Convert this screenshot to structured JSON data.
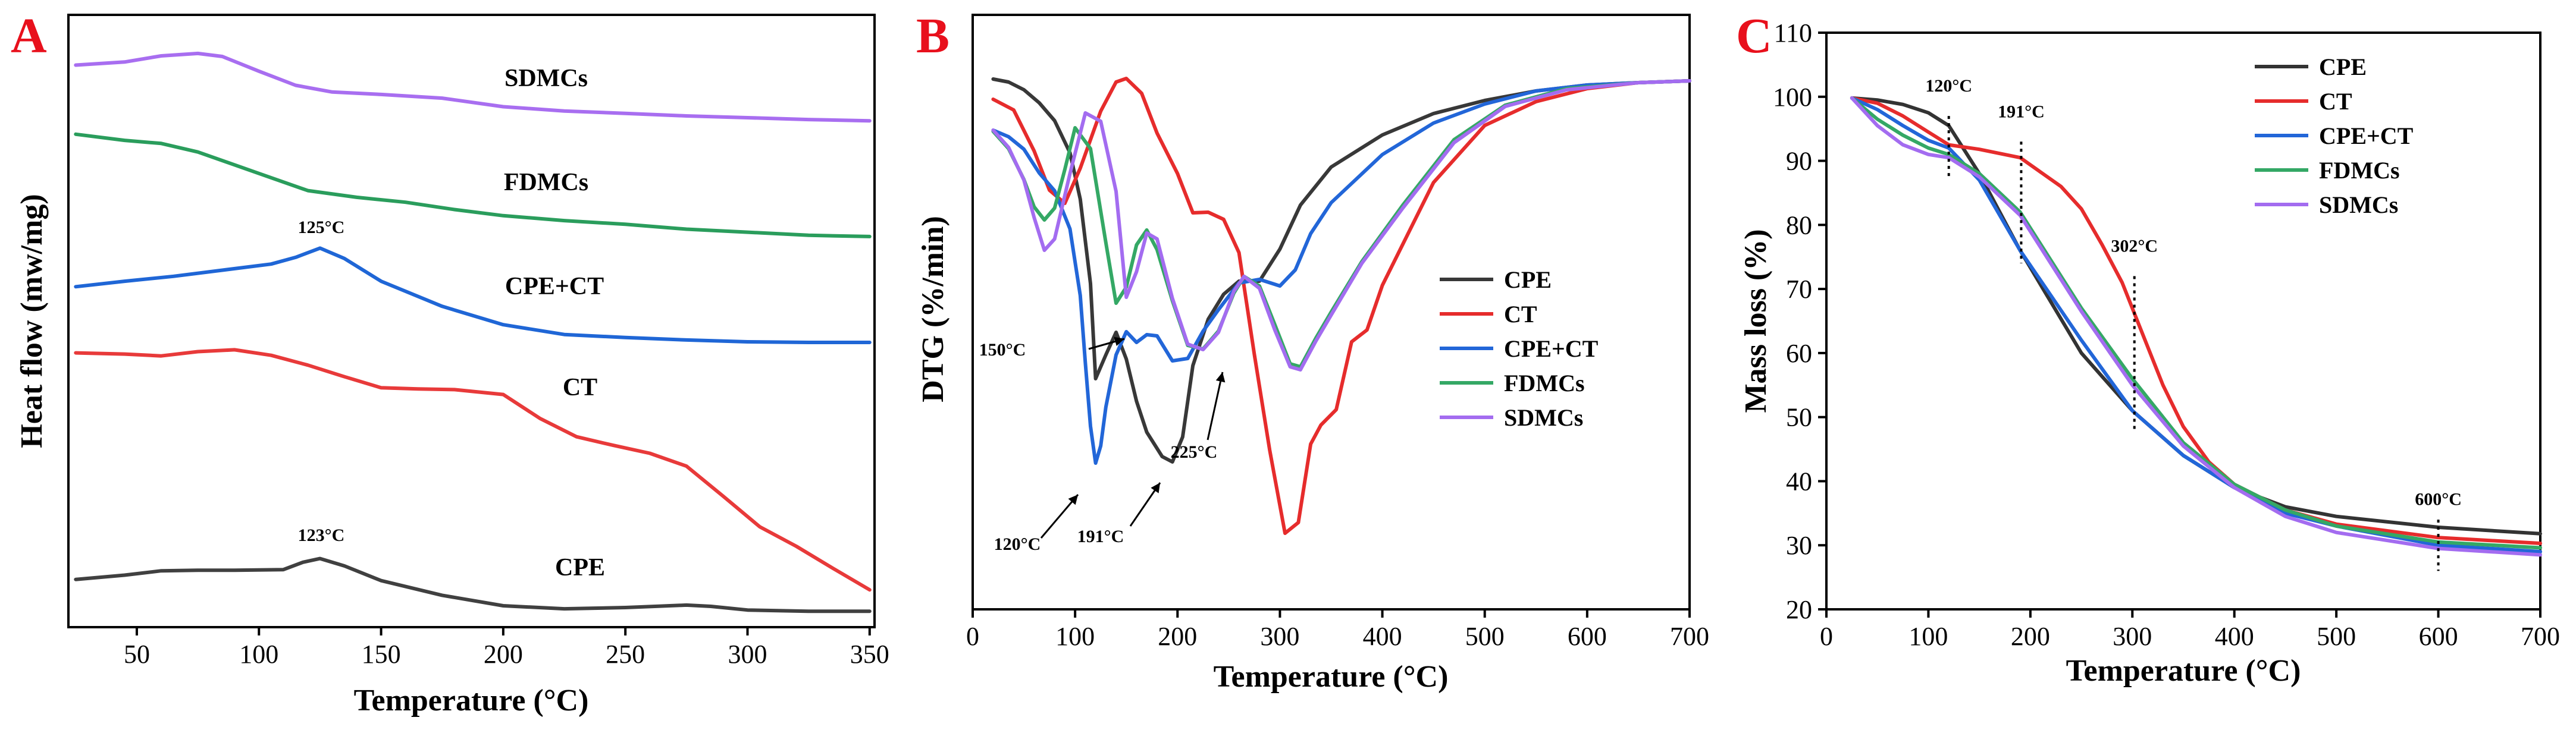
{
  "chart_data": [
    {
      "panel": "A",
      "type": "line",
      "xlabel": "Temperature (°C)",
      "ylabel": "Heat flow (mw/mg)",
      "xlim": [
        22,
        352
      ],
      "ylim": [
        0,
        1
      ],
      "xticks": [
        50,
        100,
        150,
        200,
        250,
        300,
        350
      ],
      "yticks_shown": false,
      "series": [
        {
          "name": "SDMCs",
          "color": "#a86ef0",
          "x": [
            25,
            45,
            60,
            75,
            85,
            100,
            115,
            130,
            150,
            175,
            200,
            225,
            250,
            275,
            300,
            325,
            350
          ],
          "y": [
            0.918,
            0.923,
            0.933,
            0.937,
            0.932,
            0.908,
            0.885,
            0.874,
            0.87,
            0.864,
            0.85,
            0.843,
            0.839,
            0.835,
            0.832,
            0.829,
            0.827
          ]
        },
        {
          "name": "FDMCs",
          "color": "#2a9d5c",
          "x": [
            25,
            45,
            60,
            75,
            100,
            120,
            140,
            160,
            180,
            200,
            225,
            250,
            275,
            300,
            325,
            350
          ],
          "y": [
            0.805,
            0.795,
            0.79,
            0.776,
            0.741,
            0.713,
            0.702,
            0.694,
            0.682,
            0.672,
            0.664,
            0.658,
            0.65,
            0.645,
            0.64,
            0.638
          ]
        },
        {
          "name": "CPE+CT",
          "color": "#1f66d6",
          "x": [
            25,
            45,
            65,
            85,
            105,
            115,
            125,
            135,
            150,
            175,
            200,
            225,
            250,
            275,
            300,
            325,
            350
          ],
          "y": [
            0.556,
            0.565,
            0.573,
            0.583,
            0.593,
            0.604,
            0.619,
            0.602,
            0.565,
            0.524,
            0.494,
            0.478,
            0.473,
            0.469,
            0.466,
            0.465,
            0.465
          ]
        },
        {
          "name": "CT",
          "color": "#e83a3a",
          "x": [
            25,
            45,
            60,
            75,
            90,
            105,
            120,
            135,
            150,
            165,
            180,
            200,
            215,
            230,
            245,
            260,
            275,
            290,
            305,
            320,
            335,
            350
          ],
          "y": [
            0.448,
            0.446,
            0.443,
            0.45,
            0.453,
            0.444,
            0.428,
            0.409,
            0.391,
            0.389,
            0.388,
            0.38,
            0.341,
            0.311,
            0.297,
            0.284,
            0.263,
            0.214,
            0.164,
            0.132,
            0.096,
            0.061
          ]
        },
        {
          "name": "CPE",
          "color": "#404040",
          "x": [
            25,
            45,
            60,
            75,
            90,
            110,
            118,
            125,
            135,
            150,
            175,
            200,
            225,
            250,
            275,
            285,
            300,
            325,
            350
          ],
          "y": [
            0.078,
            0.085,
            0.092,
            0.093,
            0.093,
            0.094,
            0.106,
            0.112,
            0.1,
            0.076,
            0.052,
            0.035,
            0.03,
            0.032,
            0.036,
            0.034,
            0.028,
            0.026,
            0.026
          ]
        }
      ],
      "annotations": [
        {
          "text": "125°C",
          "x": 125,
          "y": 0.645
        },
        {
          "text": "123°C",
          "x": 123,
          "y": 0.137
        }
      ]
    },
    {
      "panel": "B",
      "type": "line",
      "xlabel": "Temperature (°C)",
      "ylabel": "DTG (%/min)",
      "xlim": [
        0,
        700
      ],
      "ylim": [
        0,
        1
      ],
      "xticks": [
        0,
        100,
        200,
        300,
        400,
        500,
        600,
        700
      ],
      "yticks_shown": false,
      "legend": "bottom-right",
      "series": [
        {
          "name": "CPE",
          "color": "#383838",
          "x": [
            20,
            35,
            50,
            65,
            80,
            95,
            105,
            115,
            120,
            130,
            140,
            150,
            160,
            170,
            185,
            195,
            205,
            215,
            230,
            245,
            260,
            280,
            300,
            320,
            350,
            400,
            450,
            500,
            550,
            600,
            650,
            700
          ],
          "y": [
            0.892,
            0.887,
            0.874,
            0.852,
            0.822,
            0.768,
            0.69,
            0.548,
            0.388,
            0.428,
            0.466,
            0.421,
            0.35,
            0.298,
            0.257,
            0.248,
            0.29,
            0.41,
            0.488,
            0.53,
            0.552,
            0.552,
            0.606,
            0.68,
            0.744,
            0.798,
            0.834,
            0.856,
            0.872,
            0.882,
            0.886,
            0.889
          ]
        },
        {
          "name": "CT",
          "color": "#e62c2c",
          "x": [
            20,
            40,
            60,
            75,
            90,
            105,
            125,
            140,
            150,
            165,
            180,
            200,
            215,
            230,
            245,
            260,
            275,
            290,
            305,
            318,
            330,
            340,
            355,
            370,
            385,
            400,
            450,
            500,
            550,
            600,
            650,
            700
          ],
          "y": [
            0.858,
            0.84,
            0.771,
            0.705,
            0.683,
            0.742,
            0.838,
            0.887,
            0.893,
            0.868,
            0.801,
            0.733,
            0.667,
            0.668,
            0.656,
            0.6,
            0.429,
            0.268,
            0.128,
            0.146,
            0.278,
            0.31,
            0.336,
            0.45,
            0.47,
            0.545,
            0.718,
            0.814,
            0.854,
            0.876,
            0.886,
            0.889
          ]
        },
        {
          "name": "CPE+CT",
          "color": "#2266d8",
          "x": [
            20,
            35,
            50,
            65,
            80,
            95,
            105,
            110,
            115,
            120,
            125,
            130,
            140,
            150,
            160,
            170,
            180,
            195,
            210,
            225,
            240,
            260,
            280,
            300,
            315,
            330,
            350,
            400,
            450,
            500,
            550,
            600,
            650,
            700
          ],
          "y": [
            0.806,
            0.795,
            0.774,
            0.734,
            0.704,
            0.64,
            0.528,
            0.414,
            0.308,
            0.246,
            0.275,
            0.34,
            0.428,
            0.467,
            0.449,
            0.462,
            0.46,
            0.418,
            0.422,
            0.468,
            0.504,
            0.549,
            0.555,
            0.544,
            0.571,
            0.632,
            0.684,
            0.765,
            0.818,
            0.85,
            0.872,
            0.882,
            0.886,
            0.889
          ]
        },
        {
          "name": "FDMCs",
          "color": "#34a865",
          "x": [
            20,
            35,
            50,
            60,
            70,
            80,
            90,
            100,
            115,
            130,
            140,
            150,
            160,
            170,
            180,
            195,
            210,
            225,
            240,
            255,
            265,
            280,
            295,
            310,
            320,
            335,
            350,
            380,
            420,
            470,
            520,
            580,
            650,
            700
          ],
          "y": [
            0.804,
            0.775,
            0.723,
            0.677,
            0.655,
            0.675,
            0.74,
            0.81,
            0.775,
            0.617,
            0.515,
            0.542,
            0.613,
            0.638,
            0.605,
            0.519,
            0.444,
            0.438,
            0.468,
            0.532,
            0.56,
            0.544,
            0.479,
            0.413,
            0.408,
            0.456,
            0.5,
            0.585,
            0.68,
            0.79,
            0.848,
            0.876,
            0.886,
            0.889
          ]
        },
        {
          "name": "SDMCs",
          "color": "#a36cf0",
          "x": [
            20,
            35,
            50,
            60,
            70,
            80,
            95,
            110,
            125,
            140,
            150,
            160,
            170,
            180,
            195,
            210,
            225,
            240,
            255,
            265,
            280,
            295,
            310,
            320,
            335,
            350,
            380,
            420,
            470,
            520,
            580,
            650,
            700
          ],
          "y": [
            0.806,
            0.777,
            0.722,
            0.659,
            0.604,
            0.623,
            0.733,
            0.835,
            0.821,
            0.703,
            0.525,
            0.568,
            0.633,
            0.623,
            0.523,
            0.446,
            0.437,
            0.466,
            0.535,
            0.56,
            0.54,
            0.47,
            0.408,
            0.403,
            0.451,
            0.495,
            0.582,
            0.675,
            0.785,
            0.846,
            0.874,
            0.886,
            0.889
          ]
        }
      ],
      "annotations": [
        {
          "text": "150°C",
          "x": 40,
          "y": 0.435
        },
        {
          "text": "120°C",
          "x": 75,
          "y": 0.096
        },
        {
          "text": "191°C",
          "x": 155,
          "y": 0.111
        },
        {
          "text": "225°C",
          "x": 255,
          "y": 0.29
        }
      ]
    },
    {
      "panel": "C",
      "type": "line",
      "xlabel": "Temperature (°C)",
      "ylabel": "Mass loss (%)",
      "xlim": [
        0,
        700
      ],
      "ylim": [
        20,
        110
      ],
      "xticks": [
        0,
        100,
        200,
        300,
        400,
        500,
        600,
        700
      ],
      "yticks": [
        20,
        30,
        40,
        50,
        60,
        70,
        80,
        90,
        100,
        110
      ],
      "legend": "top-right",
      "series": [
        {
          "name": "CPE",
          "color": "#333333",
          "x": [
            25,
            50,
            75,
            100,
            120,
            150,
            190,
            250,
            300,
            350,
            400,
            450,
            500,
            600,
            700
          ],
          "y": [
            99.8,
            99.5,
            98.8,
            97.5,
            95.5,
            88,
            76,
            60,
            51,
            44,
            39,
            36,
            34.5,
            32.8,
            31.8
          ]
        },
        {
          "name": "CT",
          "color": "#e62c2c",
          "x": [
            25,
            50,
            75,
            100,
            120,
            150,
            190,
            230,
            250,
            270,
            290,
            310,
            330,
            350,
            375,
            400,
            450,
            500,
            600,
            700
          ],
          "y": [
            99.8,
            99,
            97,
            94.5,
            92.5,
            91.8,
            90.5,
            86,
            82.5,
            77,
            71,
            63,
            55,
            48.5,
            43,
            39.5,
            35.5,
            33.3,
            31.2,
            30.3
          ]
        },
        {
          "name": "CPE+CT",
          "color": "#2266d8",
          "x": [
            25,
            50,
            75,
            100,
            120,
            150,
            190,
            250,
            300,
            350,
            400,
            450,
            500,
            600,
            700
          ],
          "y": [
            99.8,
            98,
            95.5,
            93.2,
            92,
            87,
            76,
            62,
            51,
            44,
            39,
            35,
            33,
            30,
            29
          ]
        },
        {
          "name": "FDMCs",
          "color": "#34a865",
          "x": [
            25,
            50,
            75,
            100,
            120,
            150,
            190,
            250,
            300,
            350,
            400,
            450,
            500,
            600,
            700
          ],
          "y": [
            99.8,
            96.5,
            94,
            92,
            91,
            88,
            82,
            67,
            56,
            46,
            39.5,
            35.5,
            33,
            30.5,
            29.6
          ]
        },
        {
          "name": "SDMCs",
          "color": "#a36cf0",
          "x": [
            25,
            50,
            75,
            100,
            120,
            150,
            190,
            250,
            300,
            350,
            400,
            450,
            500,
            600,
            700
          ],
          "y": [
            99.8,
            95.5,
            92.5,
            91,
            90.5,
            87.5,
            81.5,
            66.5,
            55,
            45.5,
            39,
            34.5,
            32,
            29.5,
            28.5
          ]
        }
      ],
      "annotations": [
        {
          "text": "120°C",
          "x": 120,
          "y": 100.8,
          "line_x": 120,
          "line_y": [
            87,
            97
          ]
        },
        {
          "text": "191°C",
          "x": 191,
          "y": 96.8,
          "line_x": 191,
          "line_y": [
            74,
            93
          ]
        },
        {
          "text": "302°C",
          "x": 302,
          "y": 75.8,
          "line_x": 302,
          "line_y": [
            48,
            72
          ]
        },
        {
          "text": "600°C",
          "x": 600,
          "y": 36.3,
          "line_x": 600,
          "line_y": [
            26,
            34
          ]
        }
      ]
    }
  ]
}
